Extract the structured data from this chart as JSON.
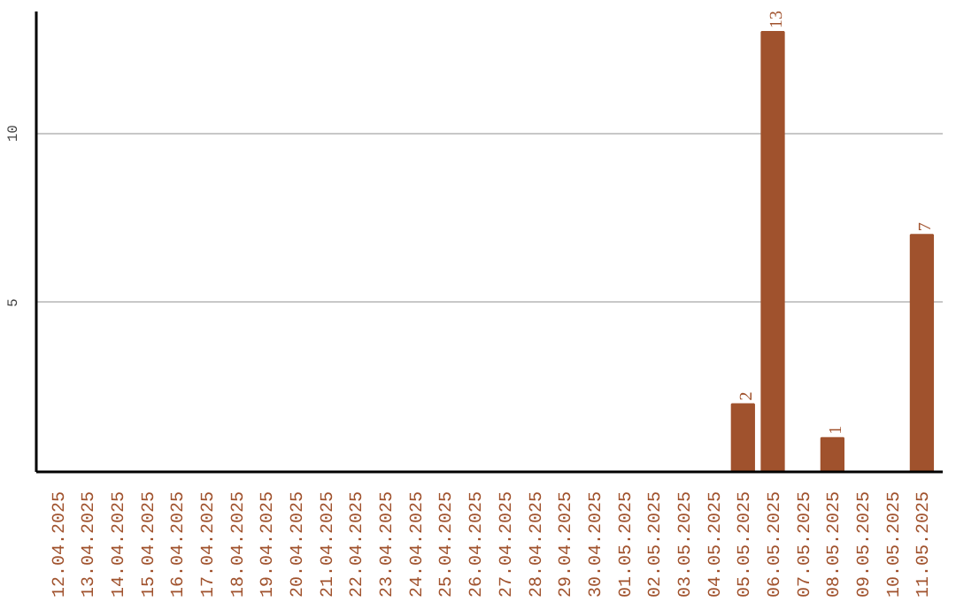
{
  "chart_data": {
    "type": "bar",
    "categories": [
      "12.04.2025",
      "13.04.2025",
      "14.04.2025",
      "15.04.2025",
      "16.04.2025",
      "17.04.2025",
      "18.04.2025",
      "19.04.2025",
      "20.04.2025",
      "21.04.2025",
      "22.04.2025",
      "23.04.2025",
      "24.04.2025",
      "25.04.2025",
      "26.04.2025",
      "27.04.2025",
      "28.04.2025",
      "29.04.2025",
      "30.04.2025",
      "01.05.2025",
      "02.05.2025",
      "03.05.2025",
      "04.05.2025",
      "05.05.2025",
      "06.05.2025",
      "07.05.2025",
      "08.05.2025",
      "09.05.2025",
      "10.05.2025",
      "11.05.2025"
    ],
    "values": [
      0,
      0,
      0,
      0,
      0,
      0,
      0,
      0,
      0,
      0,
      0,
      0,
      0,
      0,
      0,
      0,
      0,
      0,
      0,
      0,
      0,
      0,
      0,
      2,
      13,
      0,
      1,
      0,
      0,
      7
    ],
    "value_labels": [
      null,
      null,
      null,
      null,
      null,
      null,
      null,
      null,
      null,
      null,
      null,
      null,
      null,
      null,
      null,
      null,
      null,
      null,
      null,
      null,
      null,
      null,
      null,
      "2",
      "13",
      null,
      "1",
      null,
      null,
      "7"
    ],
    "color": "#a0522d",
    "ylim": [
      0,
      13.6
    ],
    "yticks": [
      5,
      10
    ],
    "grid": "y"
  }
}
